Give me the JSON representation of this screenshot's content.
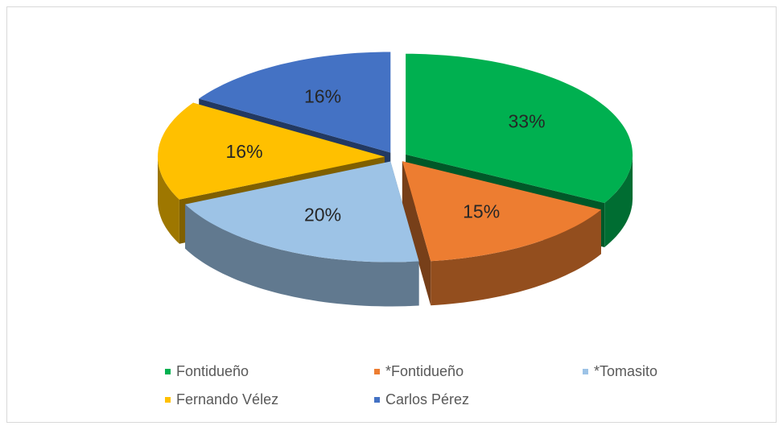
{
  "chart_data": {
    "type": "pie",
    "categories": [
      "Fontidueño",
      "*Fontidueño",
      "*Tomasito",
      "Fernando Vélez",
      "Carlos Pérez"
    ],
    "values": [
      33,
      15,
      20,
      16,
      16
    ],
    "value_labels": [
      "33%",
      "15%",
      "20%",
      "16%",
      "16%"
    ],
    "colors": [
      "#00b050",
      "#ed7d31",
      "#9dc3e6",
      "#ffc000",
      "#4472c4"
    ],
    "legend": "bottom"
  }
}
